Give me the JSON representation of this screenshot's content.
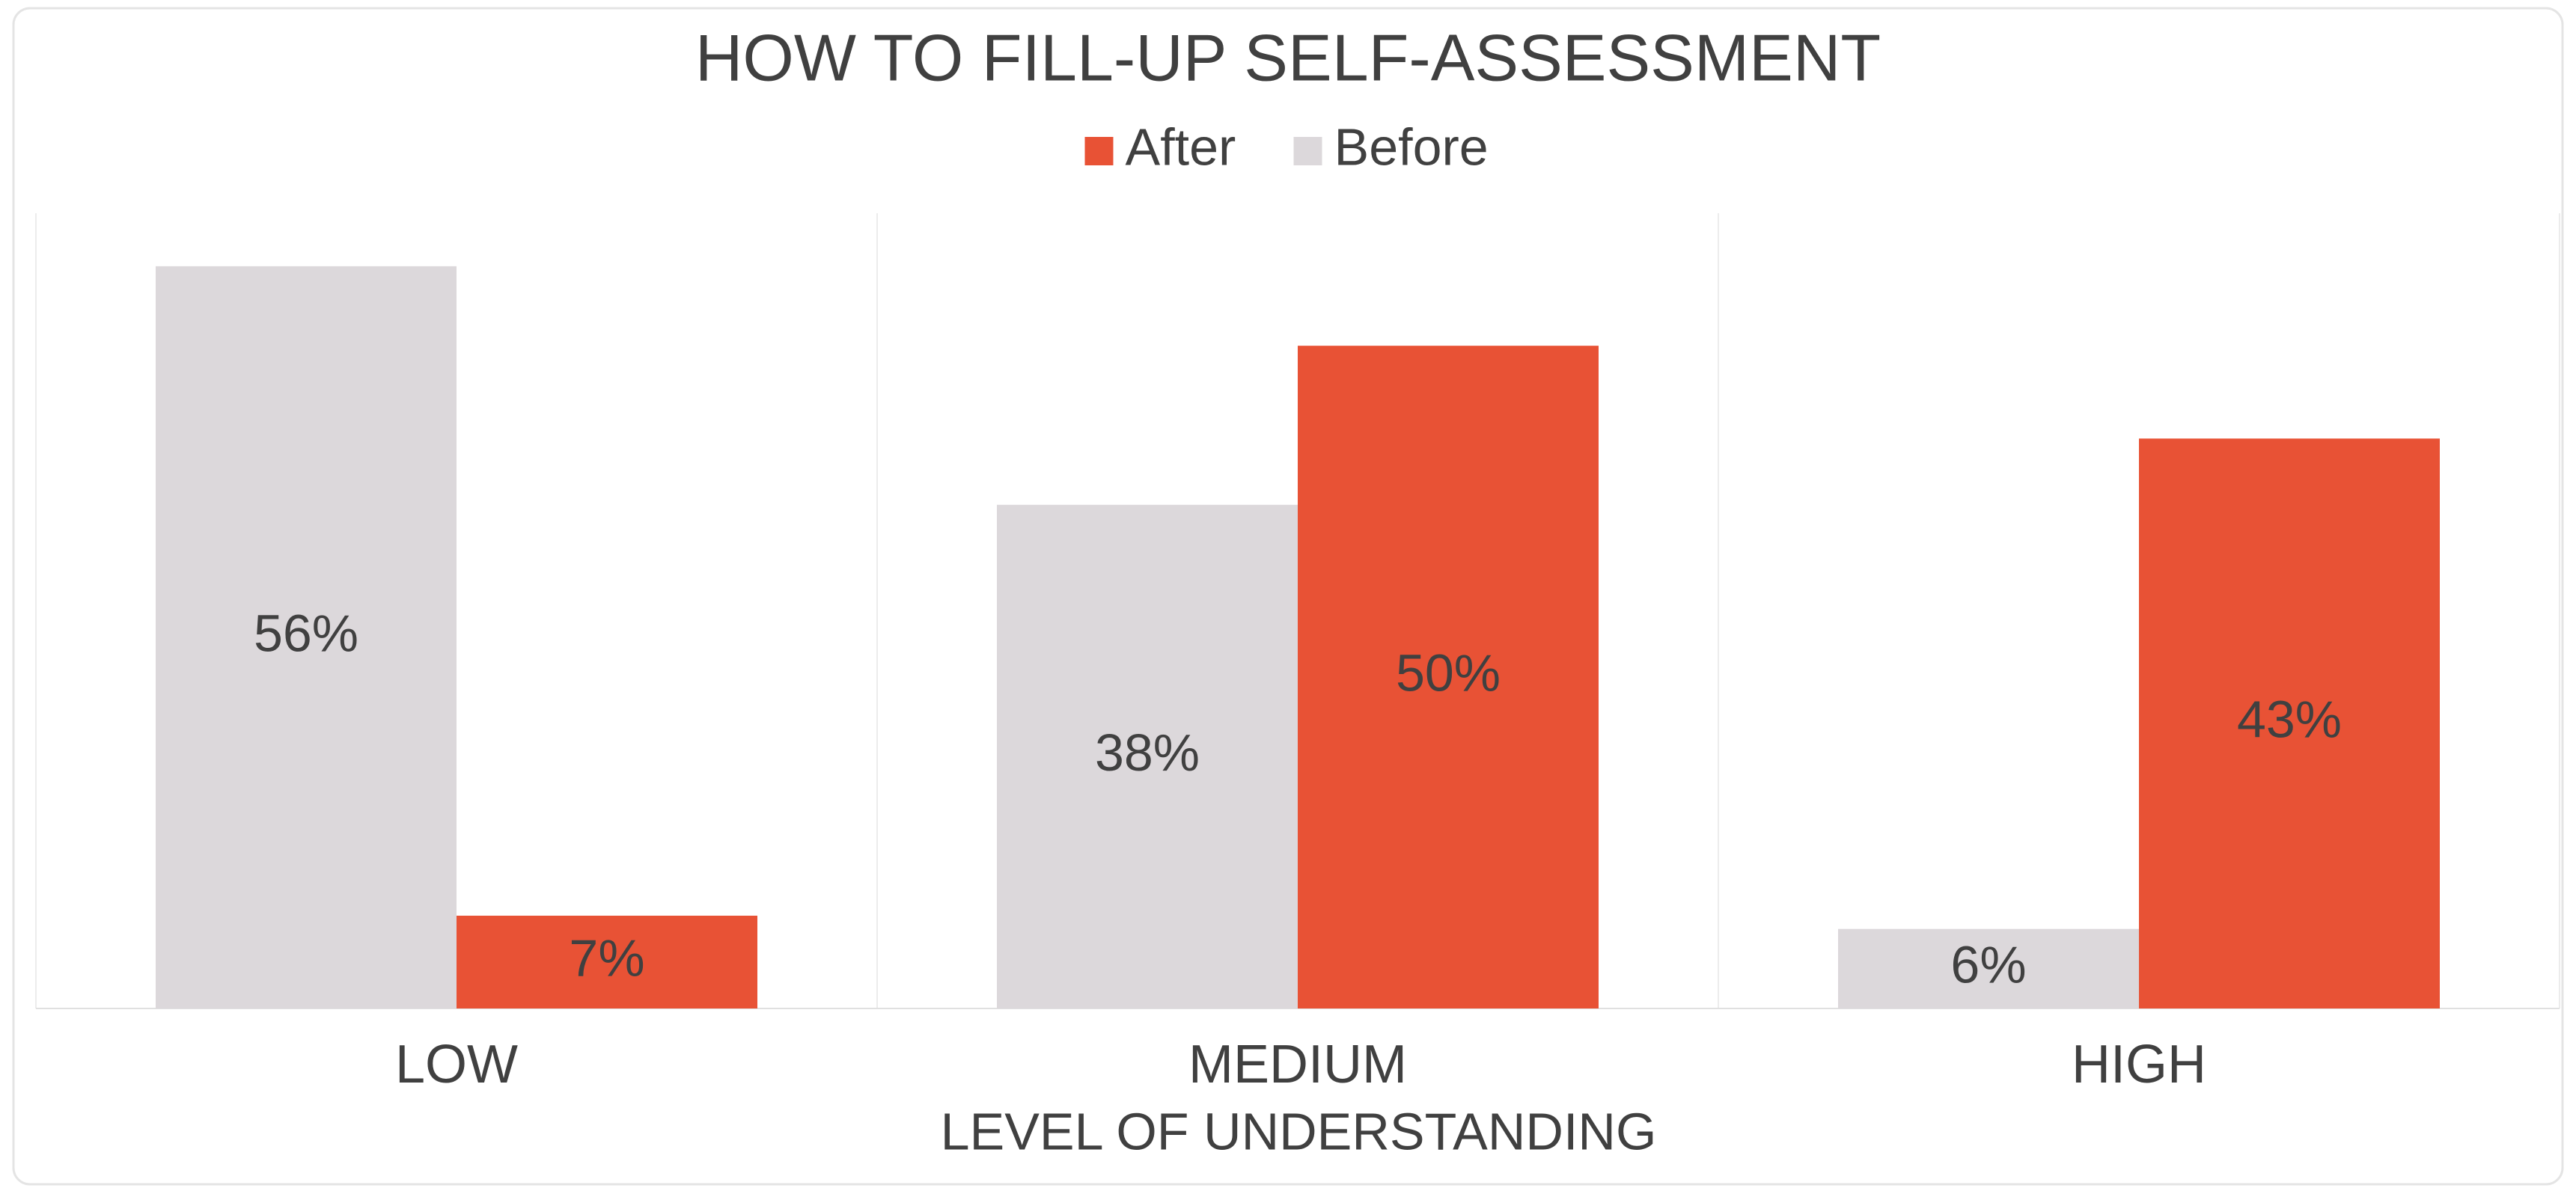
{
  "chart_data": {
    "type": "bar",
    "title": "HOW TO FILL-UP SELF-ASSESSMENT",
    "x_label": "LEVEL OF UNDERSTANDING",
    "categories": [
      "LOW",
      "MEDIUM",
      "HIGH"
    ],
    "series": [
      {
        "name": "After",
        "color": "#e85235",
        "values": [
          7,
          50,
          43
        ],
        "value_labels": [
          "7%",
          "50%",
          "43%"
        ]
      },
      {
        "name": "Before",
        "color": "#dcd8db",
        "values": [
          56,
          38,
          6
        ],
        "value_labels": [
          "56%",
          "38%",
          "6%"
        ]
      }
    ],
    "ylim": [
      0,
      60
    ],
    "legend": "top"
  }
}
